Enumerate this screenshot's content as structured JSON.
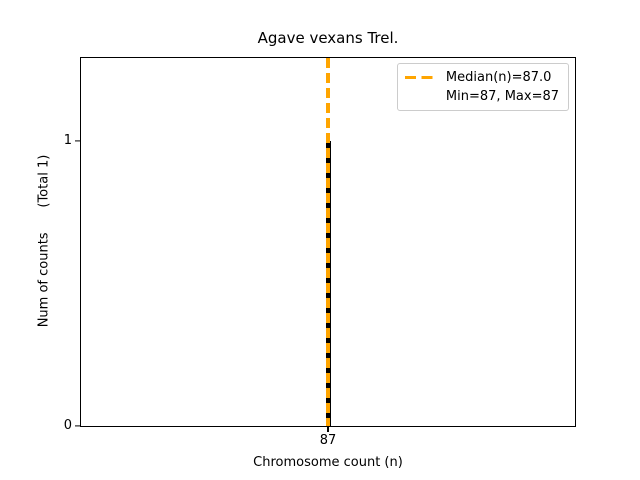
{
  "chart_data": {
    "type": "bar",
    "title": "Agave vexans Trel.",
    "xlabel": "Chromosome count (n)",
    "ylabel": "Num of counts      (Total 1)",
    "categories": [
      87
    ],
    "values": [
      1
    ],
    "total_counts": 1,
    "bar_color": "#000000",
    "x_ticks": [
      "87"
    ],
    "y_ticks": [
      "0",
      "1"
    ],
    "x_tick_values": [
      87
    ],
    "y_tick_values": [
      0,
      1
    ],
    "xlim": [
      86.5,
      87.5
    ],
    "ylim": [
      0,
      1.29
    ],
    "grid": false,
    "median_line": {
      "x": 87,
      "value_label": "Median(n)=87.0",
      "color": "#FFA500",
      "style": "dashed"
    },
    "stats": {
      "median": 87.0,
      "min": 87,
      "max": 87
    },
    "legend": {
      "position": "upper right",
      "entries": [
        {
          "symbol": "orange-dashed-line",
          "label": "Median(n)=87.0"
        },
        {
          "symbol": "none",
          "label": "Min=87, Max=87"
        }
      ]
    }
  }
}
